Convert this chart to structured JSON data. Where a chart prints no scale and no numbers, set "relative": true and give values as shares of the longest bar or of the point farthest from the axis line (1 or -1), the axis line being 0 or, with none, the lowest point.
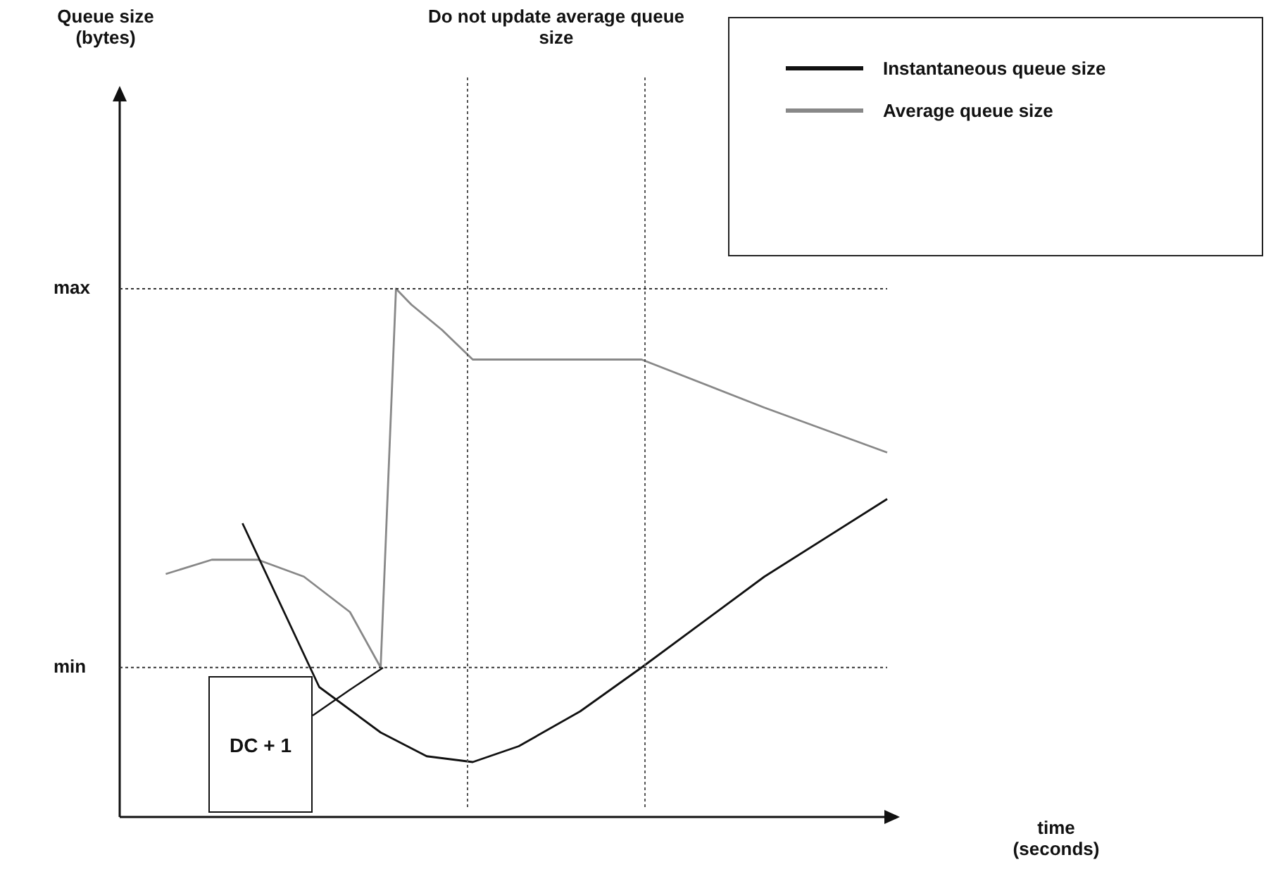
{
  "chart_data": {
    "type": "line",
    "relative": true,
    "marker": "none",
    "legend": "top right",
    "categories": [
      null,
      null,
      null,
      null,
      null,
      null,
      null,
      null,
      null,
      null,
      null,
      null,
      null,
      null,
      null,
      null,
      null,
      null,
      null,
      null,
      null,
      null,
      null,
      null,
      null,
      null,
      null,
      null,
      null,
      null,
      null,
      null,
      null,
      null,
      null,
      null,
      null,
      null,
      null,
      null,
      null,
      null,
      null,
      null,
      null,
      null,
      null,
      null,
      null,
      null,
      null
    ],
    "series": [
      {
        "name": "Instantaneous queue size",
        "color": "#111111",
        "values": [
          null,
          null,
          null,
          null,
          null,
          null,
          null,
          null,
          0.556,
          null,
          null,
          null,
          null,
          0.246,
          null,
          null,
          null,
          0.16,
          null,
          null,
          0.115,
          null,
          null,
          0.104,
          null,
          null,
          0.134,
          null,
          null,
          null,
          0.2,
          null,
          null,
          null,
          0.283,
          null,
          null,
          null,
          null,
          null,
          null,
          null,
          0.455,
          null,
          null,
          null,
          null,
          null,
          null,
          null,
          0.602
        ]
      },
      {
        "name": "Average queue size",
        "color": "#888888",
        "values": [
          null,
          null,
          null,
          0.46,
          null,
          null,
          0.487,
          null,
          null,
          0.487,
          null,
          null,
          0.455,
          null,
          null,
          0.388,
          null,
          0.283,
          1,
          0.97,
          null,
          0.922,
          null,
          0.866,
          null,
          null,
          null,
          null,
          null,
          null,
          null,
          null,
          null,
          null,
          0.866,
          null,
          null,
          null,
          null,
          null,
          null,
          null,
          0.775,
          null,
          null,
          null,
          null,
          null,
          null,
          null,
          0.69
        ]
      }
    ],
    "ref_lines": [
      {
        "axis": "y",
        "value": 1,
        "label": "max",
        "line_style": "dotted",
        "color": "#333333"
      },
      {
        "axis": "y",
        "value": 0.283,
        "label": "min",
        "line_style": "dotted",
        "color": "#333333"
      }
    ],
    "annotations": [
      "Queue size\n(bytes)",
      "Do not update average queue size",
      "time\n(seconds)",
      "DC + 1"
    ]
  }
}
